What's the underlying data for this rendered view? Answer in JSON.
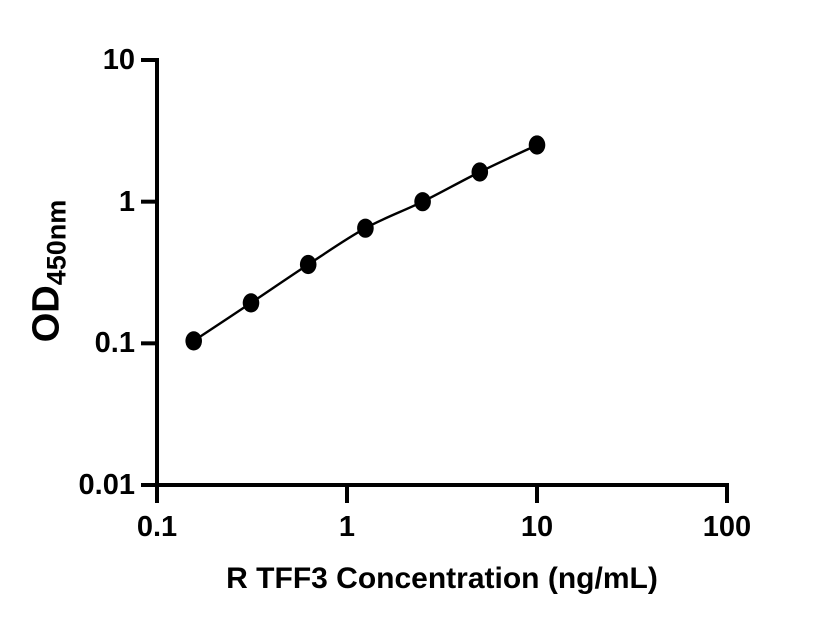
{
  "figure": {
    "background": "#ffffff"
  },
  "chart_data": {
    "type": "scatter",
    "title": "",
    "xlabel": "R TFF3 Concentration (ng/mL)",
    "ylabel": "OD450nm",
    "ylabel_parts": {
      "main": "OD",
      "sub": "450nm"
    },
    "x_scale": "log",
    "y_scale": "log",
    "xlim": [
      0.1,
      100
    ],
    "ylim": [
      0.01,
      10
    ],
    "x_ticks": [
      0.1,
      1,
      10,
      100
    ],
    "x_tick_labels": [
      "0.1",
      "1",
      "10",
      "100"
    ],
    "y_ticks": [
      0.01,
      0.1,
      1,
      10
    ],
    "y_tick_labels": [
      "0.01",
      "0.1",
      "1",
      "10"
    ],
    "grid": false,
    "marker_style": "filled-circle",
    "line_style": "smooth-fit-curve",
    "colors": {
      "axis": "#000000",
      "line": "#000000",
      "marker": "#000000"
    },
    "series": [
      {
        "x": [
          0.156,
          0.3125,
          0.625,
          1.25,
          2.5,
          5,
          10
        ],
        "y": [
          0.104,
          0.193,
          0.36,
          0.65,
          1.0,
          1.62,
          2.51
        ]
      }
    ]
  }
}
